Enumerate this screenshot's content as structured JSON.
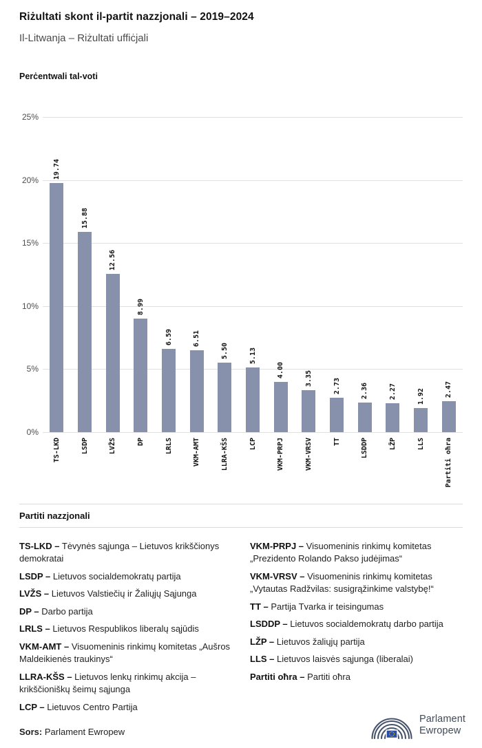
{
  "header": {
    "title": "Riżultati skont il-partit nazzjonali – 2019–2024",
    "subtitle": "Il-Litwanja – Riżultati uffiċjali"
  },
  "chart_data": {
    "type": "bar",
    "title": "Perċentwali tal-voti",
    "categories": [
      "TS-LKD",
      "LSDP",
      "LVŽS",
      "DP",
      "LRLS",
      "VKM-AMT",
      "LLRA-KŠS",
      "LCP",
      "VKM-PRPJ",
      "VKM-VRSV",
      "TT",
      "LSDDP",
      "LŽP",
      "LLS",
      "Partiti oħra"
    ],
    "values": [
      19.74,
      15.88,
      12.56,
      8.99,
      6.59,
      6.51,
      5.5,
      5.13,
      4.0,
      3.35,
      2.73,
      2.36,
      2.27,
      1.92,
      2.47
    ],
    "value_labels": [
      "19.74",
      "15.88",
      "12.56",
      "8.99",
      "6.59",
      "6.51",
      "5.50",
      "5.13",
      "4.00",
      "3.35",
      "2.73",
      "2.36",
      "2.27",
      "1.92",
      "2.47"
    ],
    "xlabel": "",
    "ylabel": "Perċentwali tal-voti",
    "ylim": [
      0,
      25
    ],
    "yticks": [
      "25%",
      "20%",
      "15%",
      "10%",
      "5%",
      "0%"
    ],
    "ytick_values": [
      25,
      20,
      15,
      10,
      5,
      0
    ],
    "grid": true,
    "legend_position": "none"
  },
  "colors": {
    "bar": "#8791ac",
    "gridline": "#e0e0e0",
    "logo_slate": "#46536b",
    "flag_blue": "#2b4ea2",
    "star_yellow": "#ffd617"
  },
  "legend": {
    "heading": "Partiti nazzjonali",
    "col1": [
      {
        "abbr": "TS-LKD –",
        "desc": " Tėvynės sąjunga – Lietuvos krikščionys demokratai"
      },
      {
        "abbr": "LSDP –",
        "desc": " Lietuvos socialdemokratų partija"
      },
      {
        "abbr": "LVŽS –",
        "desc": " Lietuvos Valstiečių ir Žaliųjų Sąjunga"
      },
      {
        "abbr": "DP –",
        "desc": " Darbo partija"
      },
      {
        "abbr": "LRLS –",
        "desc": " Lietuvos Respublikos liberalų sąjūdis"
      },
      {
        "abbr": "VKM-AMT –",
        "desc": " Visuomeninis rinkimų komitetas „Aušros Maldeikienės traukinys“"
      },
      {
        "abbr": "LLRA-KŠS –",
        "desc": " Lietuvos lenkų rinkimų akcija – krikščioniškų šeimų sąjunga"
      },
      {
        "abbr": "LCP –",
        "desc": " Lietuvos Centro Partija"
      }
    ],
    "col2": [
      {
        "abbr": "VKM-PRPJ –",
        "desc": " Visuomeninis rinkimų komitetas „Prezidento Rolando Pakso judėjimas“"
      },
      {
        "abbr": "VKM-VRSV –",
        "desc": " Visuomeninis rinkimų komitetas „Vytautas Radžvilas: susigrąžinkime valstybę!“"
      },
      {
        "abbr": "TT –",
        "desc": " Partija Tvarka ir teisingumas"
      },
      {
        "abbr": "LSDDP –",
        "desc": " Lietuvos socialdemokratų darbo partija"
      },
      {
        "abbr": "LŽP –",
        "desc": " Lietuvos žaliųjų partija"
      },
      {
        "abbr": "LLS –",
        "desc": " Lietuvos laisvės sąjunga (liberalai)"
      },
      {
        "abbr": "Partiti oħra –",
        "desc": " Partiti oħra"
      }
    ]
  },
  "footer": {
    "source_label": "Sors:",
    "source_value": " Parlament Ewropew",
    "logo_line1": "Parlament",
    "logo_line2": "Ewropew"
  }
}
